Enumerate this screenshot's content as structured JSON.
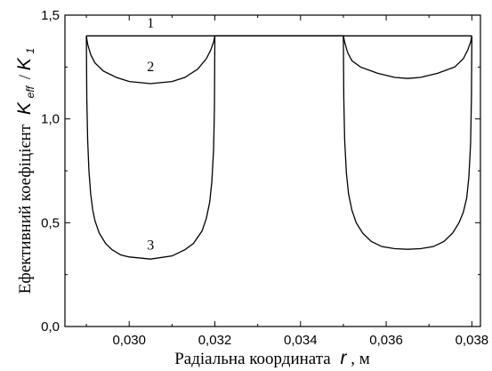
{
  "chart_data": {
    "type": "line",
    "xlabel": {
      "text": "Радіальна координата",
      "var": "r",
      "unit": ", м"
    },
    "ylabel": {
      "text": "Ефективний коефіцієнт",
      "var1": "K",
      "sub1": "eff",
      "slash": "/",
      "var2": "K",
      "sub2": "1"
    },
    "xlim": [
      0.0285,
      0.0382
    ],
    "ylim": [
      0.0,
      1.5
    ],
    "x_ticks": [
      {
        "value": 0.03,
        "label": "0,030"
      },
      {
        "value": 0.032,
        "label": "0,032"
      },
      {
        "value": 0.034,
        "label": "0,034"
      },
      {
        "value": 0.036,
        "label": "0,036"
      },
      {
        "value": 0.038,
        "label": "0,038"
      }
    ],
    "y_ticks": [
      {
        "value": 0.0,
        "label": "0,0"
      },
      {
        "value": 0.5,
        "label": "0,5"
      },
      {
        "value": 1.0,
        "label": "1,0"
      },
      {
        "value": 1.5,
        "label": "1,5"
      }
    ],
    "grid": false,
    "series": [
      {
        "name": "1",
        "label_at": [
          0.0305,
          1.44
        ],
        "x": [
          0.029,
          0.038
        ],
        "y": [
          1.4,
          1.4
        ]
      },
      {
        "name": "2",
        "label_at": [
          0.0305,
          1.23
        ],
        "x": [
          0.029,
          0.02903,
          0.0291,
          0.0292,
          0.0294,
          0.0297,
          0.03,
          0.0305,
          0.031,
          0.0313,
          0.0316,
          0.0318,
          0.0319,
          0.03197,
          0.032,
          0.035,
          0.03503,
          0.0351,
          0.0352,
          0.0354,
          0.0358,
          0.0362,
          0.0365,
          0.0368,
          0.0372,
          0.0376,
          0.0378,
          0.0379,
          0.03797,
          0.038
        ],
        "y": [
          1.4,
          1.36,
          1.31,
          1.27,
          1.23,
          1.2,
          1.18,
          1.17,
          1.18,
          1.2,
          1.24,
          1.29,
          1.33,
          1.37,
          1.4,
          1.4,
          1.37,
          1.32,
          1.28,
          1.25,
          1.22,
          1.2,
          1.195,
          1.2,
          1.22,
          1.25,
          1.29,
          1.33,
          1.37,
          1.4
        ]
      },
      {
        "name": "3",
        "label_at": [
          0.0305,
          0.37
        ],
        "x": [
          0.029,
          0.02901,
          0.02903,
          0.02906,
          0.0291,
          0.02915,
          0.0292,
          0.0293,
          0.02945,
          0.0296,
          0.0298,
          0.03,
          0.0305,
          0.031,
          0.0313,
          0.0315,
          0.0317,
          0.0318,
          0.03188,
          0.03193,
          0.03197,
          0.03199,
          0.032,
          0.035,
          0.03501,
          0.03503,
          0.03507,
          0.03512,
          0.0352,
          0.0353,
          0.03545,
          0.03565,
          0.0359,
          0.0362,
          0.0365,
          0.0368,
          0.0371,
          0.03735,
          0.03755,
          0.0377,
          0.0378,
          0.03788,
          0.03793,
          0.03797,
          0.03799,
          0.038
        ],
        "y": [
          1.4,
          1.1,
          0.9,
          0.75,
          0.64,
          0.56,
          0.51,
          0.45,
          0.4,
          0.37,
          0.345,
          0.335,
          0.325,
          0.34,
          0.37,
          0.4,
          0.46,
          0.52,
          0.6,
          0.7,
          0.85,
          1.05,
          1.4,
          1.4,
          1.1,
          0.9,
          0.74,
          0.64,
          0.56,
          0.5,
          0.45,
          0.41,
          0.385,
          0.375,
          0.372,
          0.375,
          0.385,
          0.41,
          0.45,
          0.5,
          0.55,
          0.62,
          0.72,
          0.88,
          1.1,
          1.4
        ]
      }
    ]
  }
}
